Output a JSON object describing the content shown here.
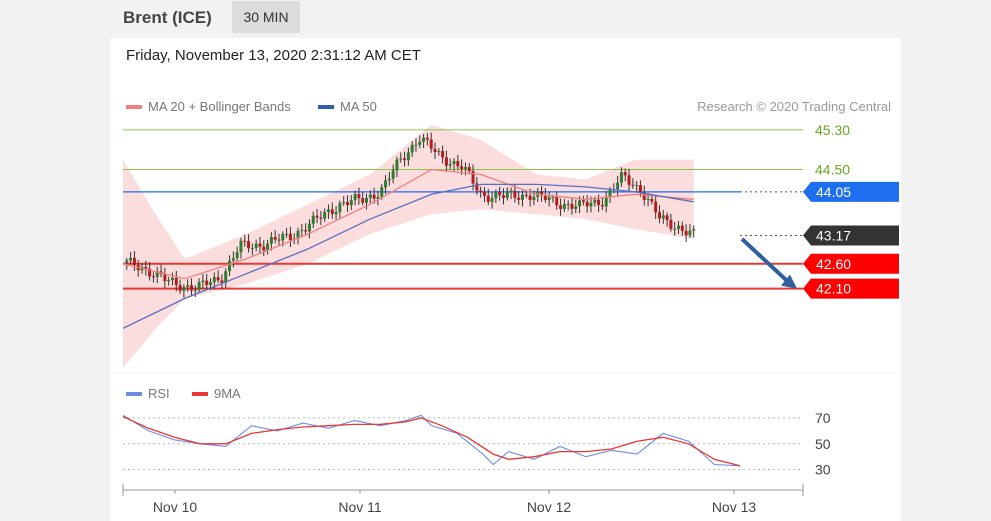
{
  "header": {
    "title": "Brent (ICE)",
    "timeframe": "30 MIN"
  },
  "datetime": "Friday, November 13, 2020 2:31:12 AM CET",
  "legend": {
    "items": [
      {
        "label": "MA 20 + Bollinger Bands",
        "color": "#f08080"
      },
      {
        "label": "MA 50",
        "color": "#2f5fb3"
      }
    ],
    "credit": "Research © 2020 Trading Central"
  },
  "rsi_legend": {
    "items": [
      {
        "label": "RSI",
        "color": "#6b8de3"
      },
      {
        "label": "9MA",
        "color": "#e53935"
      }
    ]
  },
  "colors": {
    "bull": "#4caf50",
    "bear": "#e53935",
    "blue": "#1e6ff0",
    "dark": "#333333"
  },
  "chart_data": [
    {
      "type": "candlestick",
      "title": "",
      "ylim": [
        40.5,
        45.7
      ],
      "x_labels": [
        "Nov 10",
        "Nov 11",
        "Nov 12",
        "Nov 13"
      ],
      "levels": [
        {
          "label": "45.30",
          "value": 45.3,
          "style": "green-text"
        },
        {
          "label": "44.50",
          "value": 44.5,
          "style": "green-text"
        },
        {
          "label": "44.05",
          "value": 44.05,
          "style": "blue-tag"
        },
        {
          "label": "43.17",
          "value": 43.17,
          "style": "dark-tag"
        },
        {
          "label": "42.60",
          "value": 42.6,
          "style": "red-tag"
        },
        {
          "label": "42.10",
          "value": 42.1,
          "style": "red-tag"
        }
      ],
      "price_path": [
        [
          0,
          42.62
        ],
        [
          0.03,
          42.55
        ],
        [
          0.07,
          42.25
        ],
        [
          0.12,
          42.1
        ],
        [
          0.16,
          42.35
        ],
        [
          0.19,
          42.95
        ],
        [
          0.23,
          43.0
        ],
        [
          0.27,
          43.15
        ],
        [
          0.31,
          43.45
        ],
        [
          0.35,
          43.8
        ],
        [
          0.39,
          43.9
        ],
        [
          0.42,
          44.1
        ],
        [
          0.45,
          44.7
        ],
        [
          0.48,
          45.15
        ],
        [
          0.51,
          44.8
        ],
        [
          0.55,
          44.55
        ],
        [
          0.58,
          44.0
        ],
        [
          0.62,
          43.95
        ],
        [
          0.66,
          44.0
        ],
        [
          0.7,
          43.85
        ],
        [
          0.74,
          43.75
        ],
        [
          0.78,
          43.9
        ],
        [
          0.81,
          44.35
        ],
        [
          0.84,
          44.1
        ],
        [
          0.87,
          43.5
        ],
        [
          0.9,
          43.35
        ],
        [
          0.925,
          43.17
        ]
      ],
      "ma20_path": [
        [
          0,
          42.6
        ],
        [
          0.1,
          42.3
        ],
        [
          0.2,
          42.7
        ],
        [
          0.3,
          43.2
        ],
        [
          0.4,
          43.8
        ],
        [
          0.5,
          44.5
        ],
        [
          0.58,
          44.4
        ],
        [
          0.67,
          44.0
        ],
        [
          0.75,
          43.9
        ],
        [
          0.83,
          44.0
        ],
        [
          0.925,
          43.9
        ]
      ],
      "ma50_path": [
        [
          0,
          41.3
        ],
        [
          0.1,
          41.9
        ],
        [
          0.2,
          42.4
        ],
        [
          0.3,
          42.9
        ],
        [
          0.4,
          43.5
        ],
        [
          0.5,
          44.0
        ],
        [
          0.58,
          44.2
        ],
        [
          0.67,
          44.2
        ],
        [
          0.75,
          44.15
        ],
        [
          0.83,
          44.05
        ],
        [
          0.925,
          43.85
        ]
      ],
      "band_width_path": [
        [
          0,
          2.1
        ],
        [
          0.05,
          1.2
        ],
        [
          0.1,
          0.4
        ],
        [
          0.2,
          0.5
        ],
        [
          0.3,
          0.6
        ],
        [
          0.4,
          0.6
        ],
        [
          0.5,
          0.9
        ],
        [
          0.58,
          0.7
        ],
        [
          0.67,
          0.4
        ],
        [
          0.75,
          0.4
        ],
        [
          0.83,
          0.7
        ],
        [
          0.925,
          0.8
        ]
      ],
      "forecast_arrow": {
        "from": 43.1,
        "to": 42.1
      }
    },
    {
      "type": "line",
      "title": "",
      "ylim": [
        22,
        80
      ],
      "levels": [
        {
          "label": "70",
          "value": 70
        },
        {
          "label": "50",
          "value": 50
        },
        {
          "label": "30",
          "value": 30
        }
      ],
      "series": [
        {
          "name": "RSI",
          "path": [
            [
              0,
              72
            ],
            [
              0.05,
              60
            ],
            [
              0.1,
              53
            ],
            [
              0.15,
              50
            ],
            [
              0.2,
              48
            ],
            [
              0.25,
              64
            ],
            [
              0.3,
              60
            ],
            [
              0.35,
              66
            ],
            [
              0.4,
              62
            ],
            [
              0.45,
              68
            ],
            [
              0.5,
              64
            ],
            [
              0.55,
              68
            ],
            [
              0.58,
              72
            ],
            [
              0.6,
              64
            ],
            [
              0.65,
              58
            ],
            [
              0.7,
              42
            ],
            [
              0.72,
              34
            ],
            [
              0.75,
              44
            ],
            [
              0.8,
              38
            ],
            [
              0.85,
              48
            ],
            [
              0.9,
              40
            ],
            [
              0.95,
              45
            ],
            [
              1.0,
              42
            ],
            [
              1.05,
              58
            ],
            [
              1.1,
              52
            ],
            [
              1.15,
              34
            ],
            [
              1.2,
              33
            ]
          ]
        },
        {
          "name": "9MA",
          "path": [
            [
              0,
              71
            ],
            [
              0.05,
              62
            ],
            [
              0.1,
              55
            ],
            [
              0.15,
              50
            ],
            [
              0.2,
              50
            ],
            [
              0.25,
              58
            ],
            [
              0.3,
              61
            ],
            [
              0.35,
              63
            ],
            [
              0.4,
              64
            ],
            [
              0.45,
              65
            ],
            [
              0.5,
              65
            ],
            [
              0.55,
              67
            ],
            [
              0.58,
              70
            ],
            [
              0.62,
              64
            ],
            [
              0.67,
              55
            ],
            [
              0.72,
              42
            ],
            [
              0.75,
              38
            ],
            [
              0.8,
              40
            ],
            [
              0.85,
              44
            ],
            [
              0.9,
              44
            ],
            [
              0.95,
              46
            ],
            [
              1.0,
              52
            ],
            [
              1.05,
              55
            ],
            [
              1.1,
              50
            ],
            [
              1.15,
              38
            ],
            [
              1.2,
              33
            ]
          ]
        }
      ]
    }
  ]
}
